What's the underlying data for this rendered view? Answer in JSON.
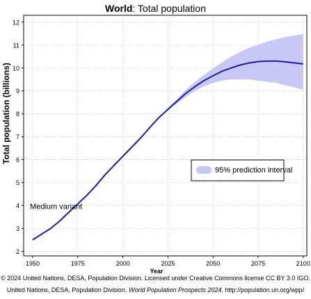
{
  "title": {
    "bold": "World",
    "rest": ": Total population"
  },
  "chart_data": {
    "type": "line",
    "title": "World: Total population",
    "xlabel": "Year",
    "ylabel": "Total population (billions)",
    "xlim": [
      1945,
      2102
    ],
    "ylim": [
      1.8,
      12.3
    ],
    "xticks": [
      1950,
      1975,
      2000,
      2025,
      2050,
      2075,
      2100
    ],
    "yticks": [
      2,
      3,
      4,
      5,
      6,
      7,
      8,
      9,
      10,
      11,
      12
    ],
    "grid": true,
    "series": [
      {
        "name": "Medium variant",
        "color": "#1a1aa6",
        "x": [
          1950,
          1955,
          1960,
          1965,
          1970,
          1975,
          1980,
          1985,
          1990,
          1995,
          2000,
          2005,
          2010,
          2015,
          2020,
          2025,
          2030,
          2035,
          2040,
          2045,
          2050,
          2055,
          2060,
          2065,
          2070,
          2075,
          2080,
          2085,
          2090,
          2095,
          2100
        ],
        "y": [
          2.5,
          2.75,
          3.0,
          3.32,
          3.7,
          4.07,
          4.44,
          4.86,
          5.33,
          5.74,
          6.15,
          6.55,
          6.96,
          7.41,
          7.84,
          8.19,
          8.55,
          8.9,
          9.19,
          9.45,
          9.66,
          9.86,
          10.0,
          10.13,
          10.22,
          10.28,
          10.3,
          10.3,
          10.27,
          10.22,
          10.18
        ]
      }
    ],
    "interval": {
      "name": "95% prediction interval",
      "color": "#c8c8f5",
      "x": [
        2024,
        2030,
        2035,
        2040,
        2045,
        2050,
        2055,
        2060,
        2065,
        2070,
        2075,
        2080,
        2085,
        2090,
        2095,
        2100
      ],
      "lower": [
        8.15,
        8.45,
        8.75,
        9.0,
        9.2,
        9.35,
        9.45,
        9.5,
        9.5,
        9.5,
        9.45,
        9.4,
        9.35,
        9.25,
        9.15,
        9.05
      ],
      "upper": [
        8.2,
        8.65,
        9.05,
        9.4,
        9.7,
        9.98,
        10.25,
        10.5,
        10.7,
        10.88,
        11.02,
        11.15,
        11.25,
        11.35,
        11.42,
        11.48
      ]
    },
    "annotations": [
      {
        "text": "Medium variant",
        "x": 1963,
        "y": 3.85
      }
    ],
    "legend": {
      "placement": "right",
      "label": "95% prediction interval"
    }
  },
  "credit": {
    "line1": "© 2024 United Nations, DESA, Population Division. Licensed under Creative Commons license CC BY 3.0 IGO.",
    "line2_pre": "United Nations, DESA, Population Division. ",
    "line2_italic": "World Population Prospects 2024",
    "line2_post": ". http://population.un.org/wpp/"
  }
}
